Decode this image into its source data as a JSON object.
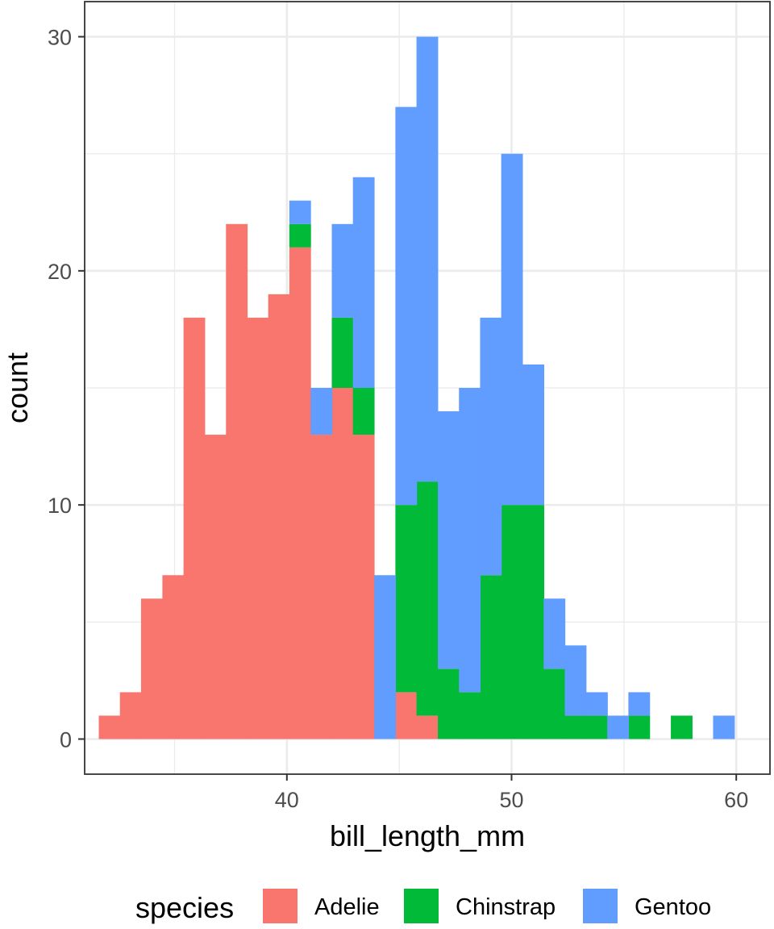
{
  "chart_data": {
    "type": "bar",
    "subtype": "stacked-histogram",
    "title": "",
    "xlabel": "bill_length_mm",
    "ylabel": "count",
    "xlim": [
      31.0,
      61.5
    ],
    "ylim": [
      -1.5,
      31.5
    ],
    "x_ticks": [
      40,
      50,
      60
    ],
    "y_ticks": [
      0,
      10,
      20,
      30
    ],
    "grid": true,
    "bin_width": 0.9425,
    "bin_centers": [
      32.1,
      33.04,
      33.98,
      34.93,
      35.87,
      36.81,
      37.76,
      38.7,
      39.64,
      40.58,
      41.53,
      42.47,
      43.41,
      44.36,
      45.3,
      46.24,
      47.19,
      48.13,
      49.07,
      50.01,
      50.96,
      51.9,
      52.84,
      53.79,
      54.73,
      55.67,
      56.61,
      57.56,
      58.5,
      59.44
    ],
    "series": [
      {
        "name": "Adelie",
        "color": "#F8766D",
        "values": [
          1,
          2,
          6,
          7,
          18,
          13,
          22,
          18,
          19,
          21,
          13,
          15,
          13,
          0,
          2,
          1,
          0,
          0,
          0,
          0,
          0,
          0,
          0,
          0,
          0,
          0,
          0,
          0,
          0,
          0
        ]
      },
      {
        "name": "Chinstrap",
        "color": "#00BA38",
        "values": [
          0,
          0,
          0,
          0,
          0,
          0,
          0,
          0,
          0,
          1,
          0,
          3,
          2,
          0,
          8,
          10,
          3,
          2,
          7,
          10,
          10,
          3,
          1,
          1,
          0,
          1,
          0,
          1,
          0,
          0
        ]
      },
      {
        "name": "Gentoo",
        "color": "#619CFF",
        "values": [
          0,
          0,
          0,
          0,
          0,
          0,
          0,
          0,
          0,
          1,
          2,
          4,
          9,
          7,
          17,
          19,
          11,
          13,
          11,
          15,
          6,
          3,
          3,
          1,
          1,
          1,
          0,
          0,
          0,
          1
        ]
      }
    ],
    "legend_position": "bottom",
    "legend_title": "species"
  }
}
